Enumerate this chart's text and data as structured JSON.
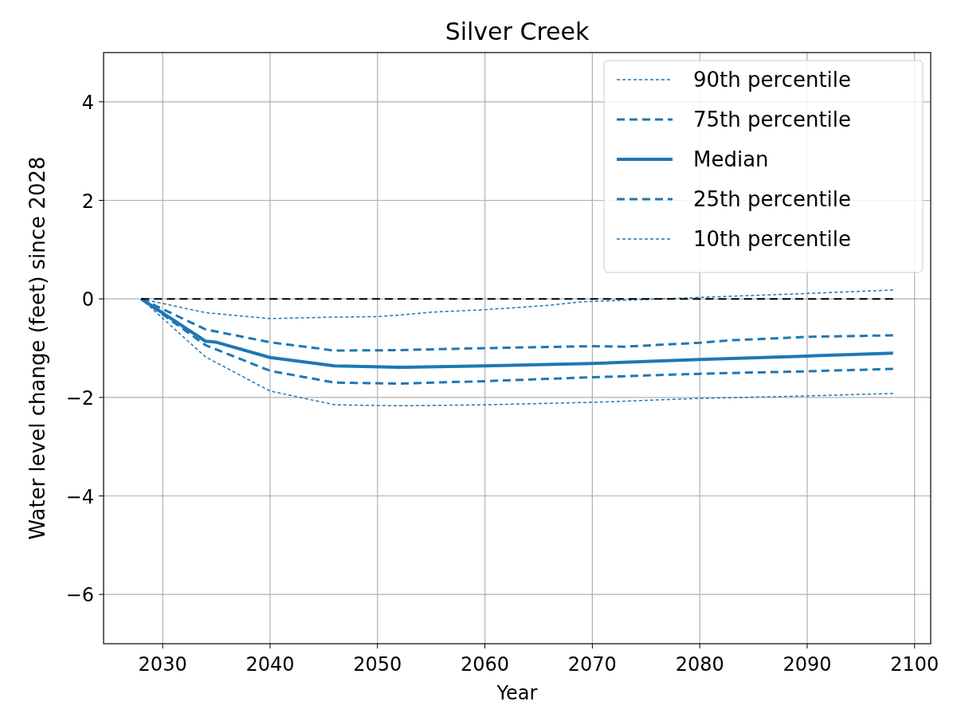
{
  "chart_data": {
    "type": "line",
    "title": "Silver Creek",
    "xlabel": "Year",
    "ylabel": "Water level change (feet) since 2028",
    "xlim": [
      2024.5,
      2101.5
    ],
    "xticks": [
      2030,
      2040,
      2050,
      2060,
      2070,
      2080,
      2090,
      2100
    ],
    "ylim": [
      -7,
      5
    ],
    "yticks": [
      -6,
      -4,
      -2,
      0,
      2,
      4
    ],
    "grid": true,
    "legend": "top right",
    "series": [
      {
        "name": "90th percentile",
        "color": "#1f77b4",
        "line_style": "dotted",
        "x": [
          2028,
          2034,
          2040,
          2046,
          2050,
          2052,
          2055,
          2060,
          2066,
          2069,
          2080,
          2090,
          2098
        ],
        "values": [
          0,
          -0.28,
          -0.4,
          -0.37,
          -0.36,
          -0.33,
          -0.27,
          -0.22,
          -0.13,
          -0.06,
          0.03,
          0.11,
          0.18
        ]
      },
      {
        "name": "75th percentile",
        "color": "#1f77b4",
        "line_style": "dashed",
        "x": [
          2028,
          2034,
          2040,
          2046,
          2052,
          2060,
          2070,
          2073,
          2080,
          2083,
          2090,
          2098
        ],
        "values": [
          0,
          -0.62,
          -0.88,
          -1.05,
          -1.04,
          -1.0,
          -0.96,
          -0.97,
          -0.89,
          -0.84,
          -0.77,
          -0.74
        ]
      },
      {
        "name": "Median",
        "color": "#1f77b4",
        "line_style": "solid",
        "x": [
          2028,
          2034,
          2035,
          2040,
          2046,
          2052,
          2060,
          2070,
          2080,
          2090,
          2098
        ],
        "values": [
          0,
          -0.86,
          -0.88,
          -1.19,
          -1.36,
          -1.39,
          -1.36,
          -1.31,
          -1.23,
          -1.16,
          -1.1
        ]
      },
      {
        "name": "25th percentile",
        "color": "#1f77b4",
        "line_style": "dashed",
        "x": [
          2028,
          2034,
          2040,
          2046,
          2052,
          2060,
          2070,
          2080,
          2090,
          2098
        ],
        "values": [
          0,
          -0.94,
          -1.46,
          -1.7,
          -1.72,
          -1.67,
          -1.59,
          -1.52,
          -1.47,
          -1.42
        ]
      },
      {
        "name": "10th percentile",
        "color": "#1f77b4",
        "line_style": "dotted",
        "x": [
          2028,
          2034,
          2040,
          2046,
          2052,
          2060,
          2070,
          2080,
          2090,
          2098
        ],
        "values": [
          0,
          -1.18,
          -1.87,
          -2.15,
          -2.17,
          -2.15,
          -2.1,
          -2.02,
          -1.97,
          -1.92
        ]
      },
      {
        "color": "#000000",
        "line_style": "dashed",
        "x": [
          2028,
          2098
        ],
        "values": [
          0,
          0
        ]
      }
    ]
  }
}
